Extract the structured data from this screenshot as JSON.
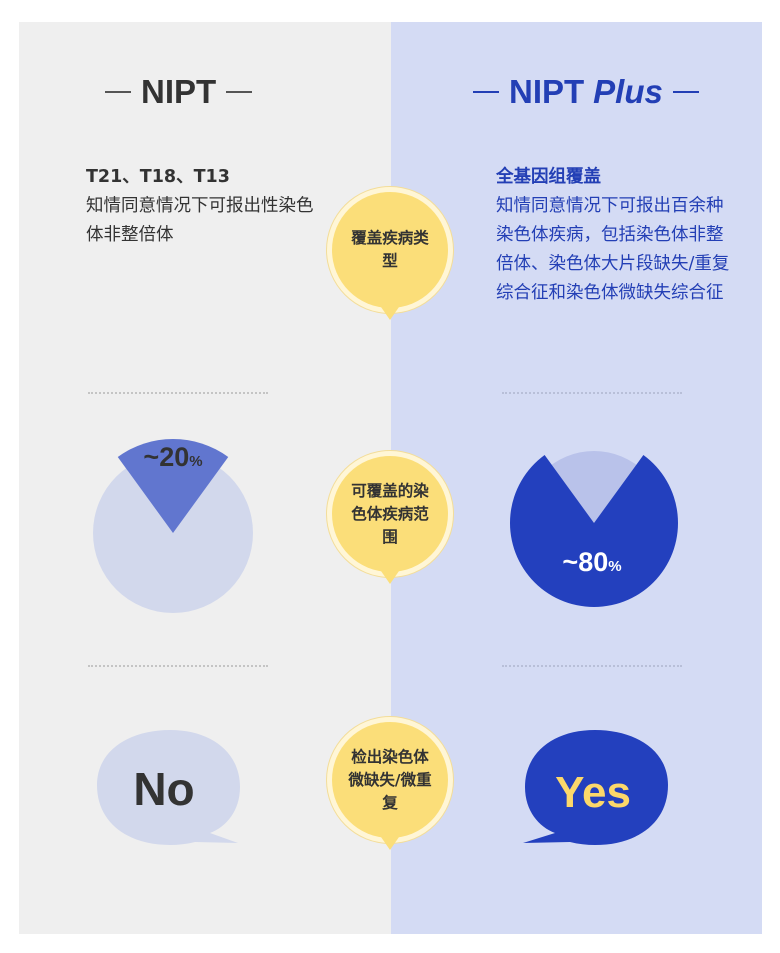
{
  "left": {
    "title": "NIPT",
    "desc_lead": "T21、T18、T13",
    "desc_body": "知情同意情况下可报出性染色体非整倍体",
    "coverage_value": "~20",
    "coverage_unit": "%",
    "coverage_fraction": 0.2,
    "answer": "No"
  },
  "right": {
    "title_main": "NIPT",
    "title_italic": "Plus",
    "desc_lead": "全基因组覆盖",
    "desc_body": "知情同意情况下可报出百余种染色体疾病，包括染色体非整倍体、染色体大片段缺失/重复综合征和染色体微缺失综合征",
    "coverage_value": "~80",
    "coverage_unit": "%",
    "coverage_fraction": 0.8,
    "answer": "Yes"
  },
  "criteria": [
    {
      "label": "覆盖疾病类型"
    },
    {
      "label": "可覆盖的染色体疾病范围"
    },
    {
      "label": "检出染色体微缺失/微重复"
    }
  ],
  "colors": {
    "left_bg": "#efefef",
    "right_bg": "#d4dbf4",
    "accent_blue": "#233fb5",
    "pie_light": "#d2d8ec",
    "pie_mid": "#6176cf",
    "bubble_yellow": "#fbde79",
    "yes_text": "#fcd86a"
  }
}
